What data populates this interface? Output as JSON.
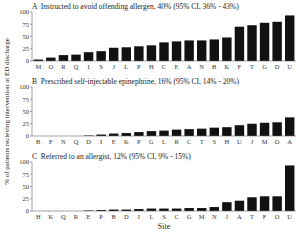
{
  "chart_data": [
    {
      "type": "bar",
      "title": "A  Instructed to avoid offending allergen, 40% (95% CI, 36% - 43%)",
      "categories": [
        "M",
        "O",
        "R",
        "Q",
        "I",
        "S",
        "J",
        "L",
        "P",
        "H",
        "C",
        "E",
        "A",
        "N",
        "B",
        "K",
        "F",
        "T",
        "G",
        "D",
        "U"
      ],
      "values": [
        3,
        7,
        12,
        13,
        18,
        20,
        27,
        28,
        30,
        32,
        38,
        40,
        42,
        42,
        44,
        48,
        70,
        73,
        78,
        80,
        93
      ],
      "color": "#111111",
      "ylim": [
        0,
        100
      ],
      "yticks": [
        0,
        25,
        50,
        75,
        100
      ],
      "grid": false
    },
    {
      "type": "bar",
      "title": "B  Prescribed self-injectable epinephrine, 16% (95% CI, 14% - 20%)",
      "y_label": "% of patients recieving intervention at ED discharge",
      "categories": [
        "B",
        "F",
        "N",
        "Q",
        "D",
        "I",
        "E",
        "K",
        "P",
        "G",
        "L",
        "R",
        "C",
        "T",
        "S",
        "H",
        "U",
        "J",
        "M",
        "O",
        "A"
      ],
      "values": [
        0,
        0,
        0,
        0,
        1,
        3,
        5,
        6,
        8,
        10,
        11,
        13,
        14,
        15,
        17,
        18,
        22,
        25,
        27,
        28,
        38
      ],
      "color": "#111111",
      "ylim": [
        0,
        100
      ],
      "yticks": [
        0,
        25,
        50,
        75,
        100
      ],
      "grid": false
    },
    {
      "type": "bar",
      "title": "C  Referred to an allergist, 12% (95% CI, 9% - 15%)",
      "x_label": "Site",
      "categories": [
        "H",
        "K",
        "Q",
        "R",
        "E",
        "P",
        "B",
        "D",
        "I",
        "L",
        "S",
        "C",
        "G",
        "M",
        "N",
        "J",
        "A",
        "T",
        "F",
        "O",
        "U"
      ],
      "values": [
        0,
        0,
        0,
        0,
        1,
        2,
        3,
        3,
        4,
        5,
        5,
        5,
        6,
        6,
        8,
        18,
        21,
        28,
        30,
        30,
        93
      ],
      "color": "#111111",
      "ylim": [
        0,
        100
      ],
      "yticks": [
        0,
        25,
        50,
        75,
        100
      ],
      "grid": false
    }
  ]
}
